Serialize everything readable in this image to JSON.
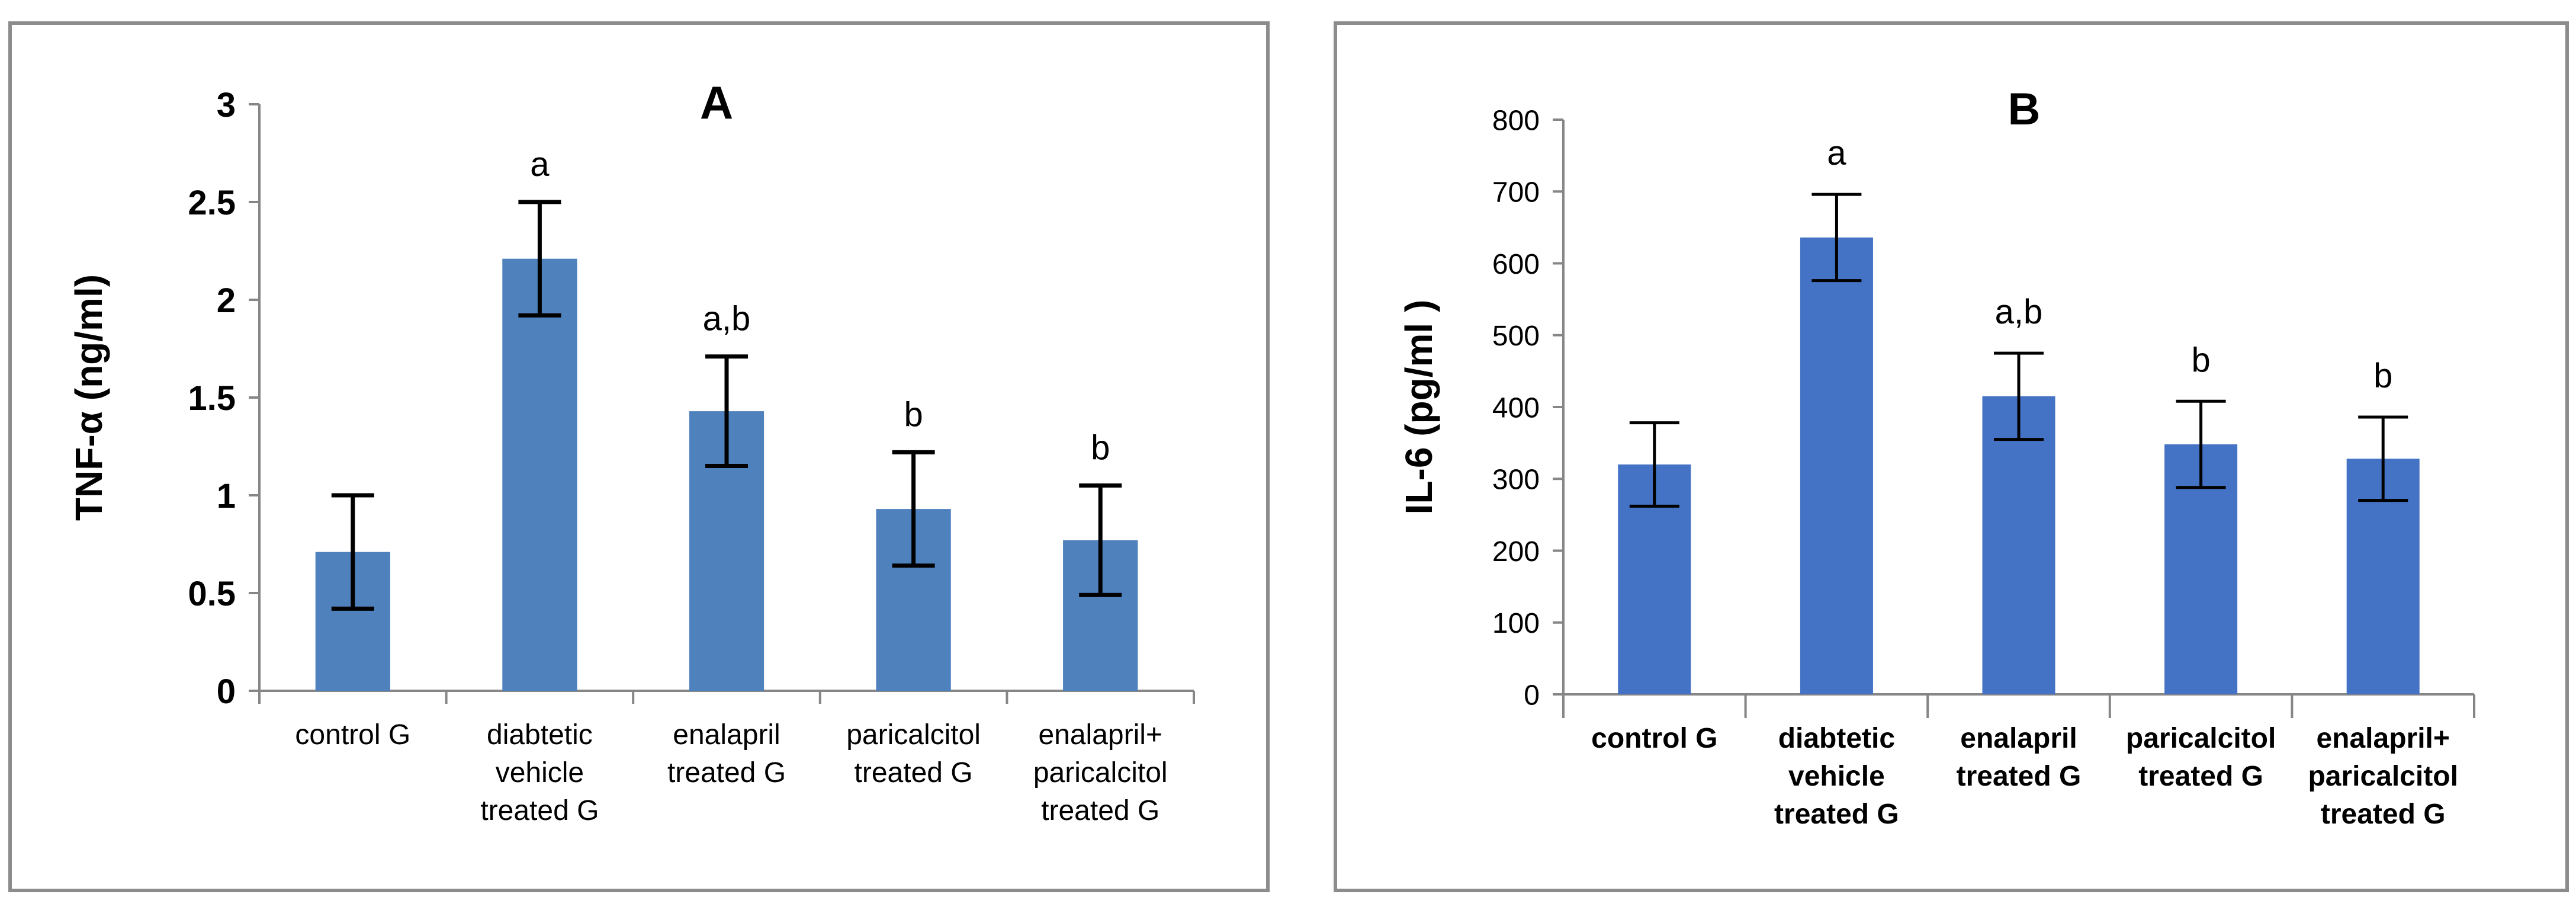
{
  "chart_data": [
    {
      "type": "bar",
      "title": "A",
      "ylabel": "TNF-α  (ng/ml)",
      "xlabel": "",
      "categories": [
        [
          "control G"
        ],
        [
          "diabtetic",
          "vehicle",
          "treated G"
        ],
        [
          "enalapril",
          "treated G"
        ],
        [
          "paricalcitol",
          "treated G"
        ],
        [
          "enalapril+",
          "paricalcitol",
          "treated G"
        ]
      ],
      "values": [
        0.71,
        2.21,
        1.43,
        0.93,
        0.77
      ],
      "errors": [
        0.29,
        0.29,
        0.28,
        0.29,
        0.28
      ],
      "significance": [
        "",
        "a",
        "a,b",
        "b",
        "b"
      ],
      "ylim": [
        0,
        3
      ],
      "yticks": [
        0,
        0.5,
        1,
        1.5,
        2,
        2.5,
        3
      ],
      "ytick_labels": [
        "0",
        "0.5",
        "1",
        "1.5",
        "2",
        "2.5",
        "3"
      ],
      "bar_color": "#4f81bd",
      "grid": false
    },
    {
      "type": "bar",
      "title": "B",
      "ylabel": "IL-6 (pg/ml )",
      "xlabel": "",
      "categories": [
        [
          "control G"
        ],
        [
          "diabtetic",
          "vehicle",
          "treated G"
        ],
        [
          "enalapril",
          "treated G"
        ],
        [
          "paricalcitol",
          "treated G"
        ],
        [
          "enalapril+",
          "paricalcitol",
          "treated G"
        ]
      ],
      "values": [
        320,
        636,
        415,
        348,
        328
      ],
      "errors": [
        58,
        60,
        60,
        60,
        58
      ],
      "significance": [
        "",
        "a",
        "a,b",
        "b",
        "b"
      ],
      "ylim": [
        0,
        800
      ],
      "yticks": [
        0,
        100,
        200,
        300,
        400,
        500,
        600,
        700,
        800
      ],
      "ytick_labels": [
        "0",
        "100",
        "200",
        "300",
        "400",
        "500",
        "600",
        "700",
        "800"
      ],
      "bar_color": "#4472c4",
      "grid": false
    }
  ]
}
